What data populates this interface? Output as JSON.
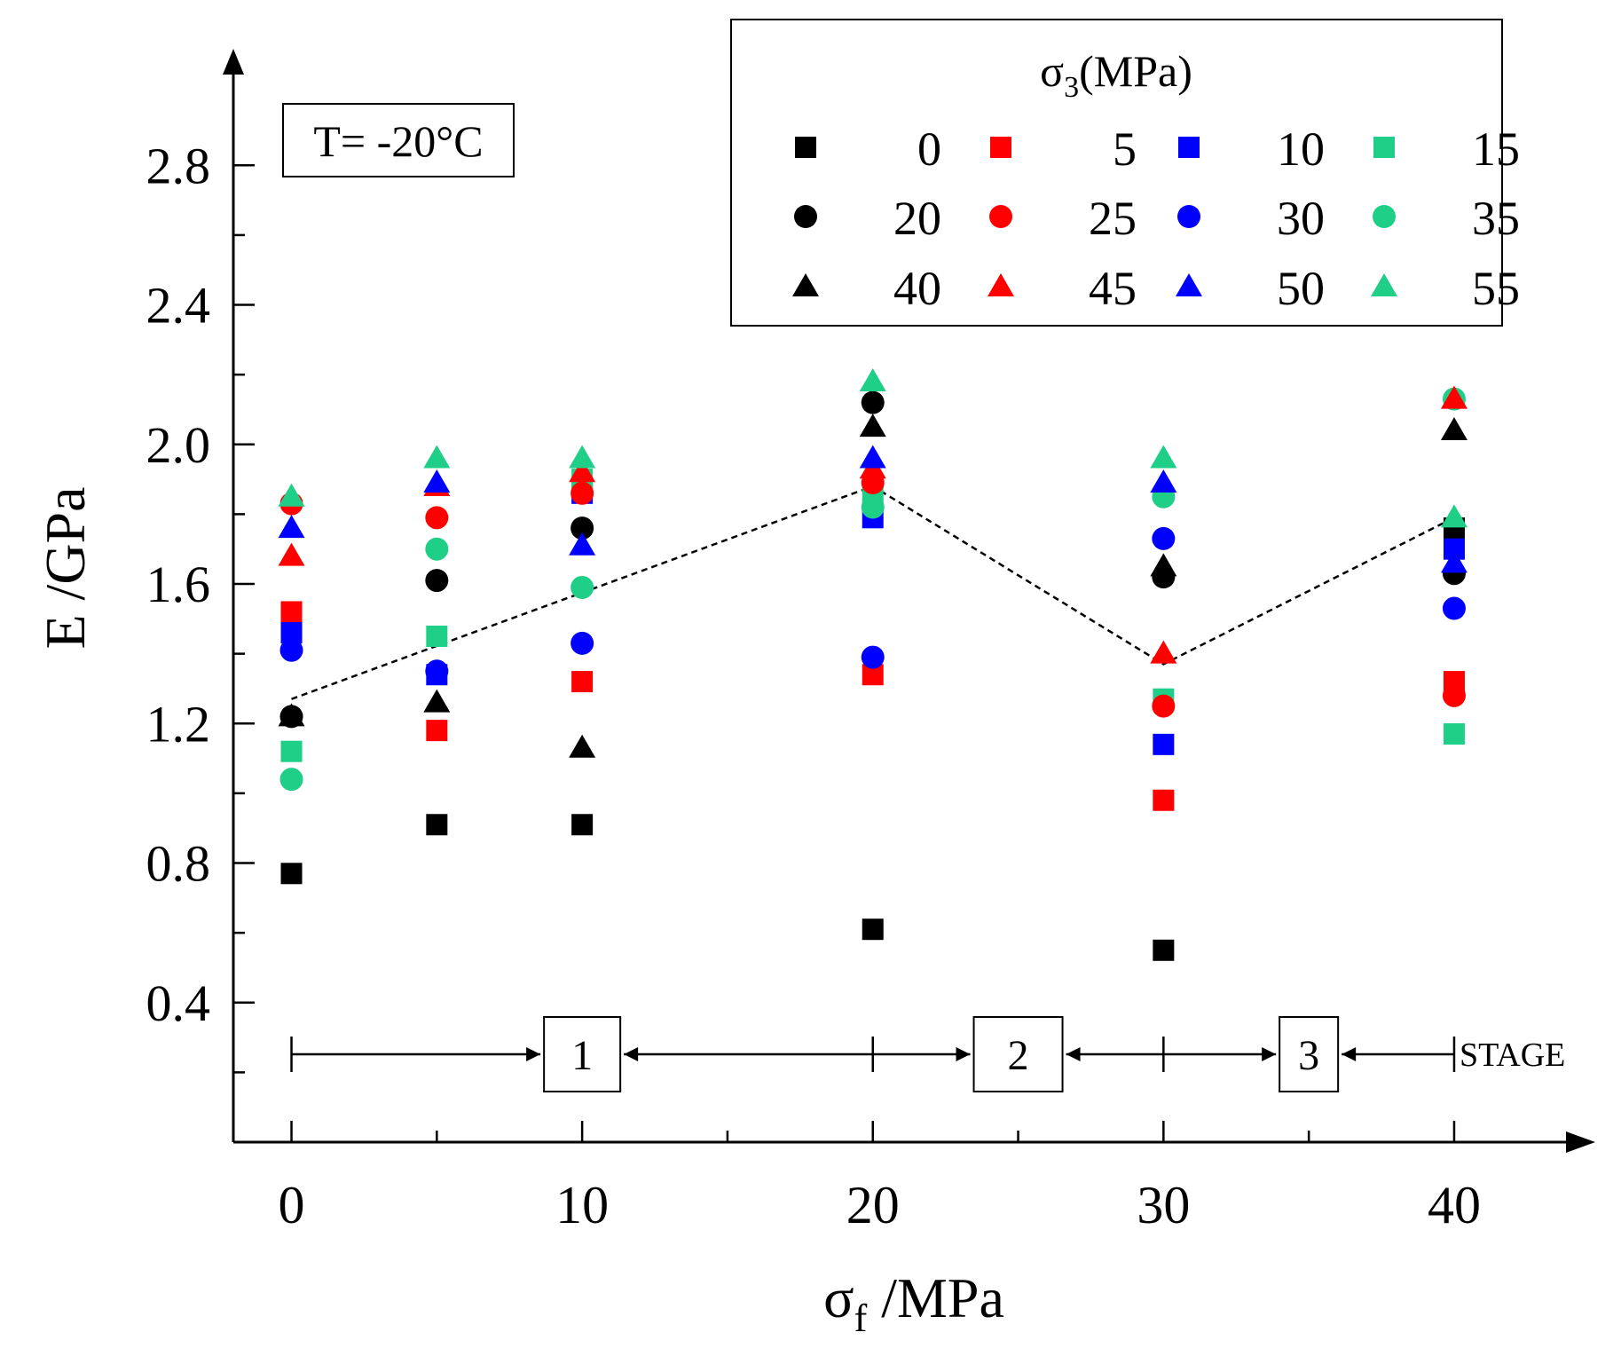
{
  "annotation": "T= -20°C",
  "legend": {
    "title_main": "σ",
    "title_sub": "3",
    "title_unit": "(MPa)"
  },
  "stage_labels": [
    "1",
    "2",
    "3"
  ],
  "stage_word": "STAGE",
  "colors": {
    "black": "#000000",
    "red": "#ff0000",
    "blue": "#0000ff",
    "green": "#1fcf87"
  },
  "chart_data": {
    "type": "scatter",
    "xlabel_main": "σ",
    "xlabel_sub": "f",
    "xlabel_unit": " /MPa",
    "ylabel": "E /GPa",
    "xlim": [
      -2,
      44
    ],
    "ylim": [
      0,
      3.05
    ],
    "xticks": [
      0,
      10,
      20,
      30,
      40
    ],
    "xtick_labels": [
      "0",
      "10",
      "20",
      "30",
      "40"
    ],
    "yticks": [
      0.4,
      0.8,
      1.2,
      1.6,
      2.0,
      2.4,
      2.8
    ],
    "ytick_labels": [
      "0.4",
      "0.8",
      "1.2",
      "1.6",
      "2.0",
      "2.4",
      "2.8"
    ],
    "x": [
      0,
      5,
      10,
      20,
      30,
      40
    ],
    "series": [
      {
        "name": "0",
        "marker": "square",
        "color": "#000000",
        "values": [
          0.77,
          0.91,
          0.91,
          0.61,
          0.55,
          1.76
        ]
      },
      {
        "name": "5",
        "marker": "square",
        "color": "#ff0000",
        "values": [
          1.52,
          1.18,
          1.32,
          1.34,
          0.98,
          1.32
        ]
      },
      {
        "name": "10",
        "marker": "square",
        "color": "#0000ff",
        "values": [
          1.46,
          1.34,
          1.86,
          1.79,
          1.14,
          1.7
        ]
      },
      {
        "name": "15",
        "marker": "square",
        "color": "#1fcf87",
        "values": [
          1.12,
          1.45,
          1.9,
          1.86,
          1.27,
          1.17
        ]
      },
      {
        "name": "20",
        "marker": "circle",
        "color": "#000000",
        "values": [
          1.22,
          1.61,
          1.76,
          2.12,
          1.62,
          1.63
        ]
      },
      {
        "name": "25",
        "marker": "circle",
        "color": "#ff0000",
        "values": [
          1.83,
          1.79,
          1.86,
          1.89,
          1.25,
          1.28
        ]
      },
      {
        "name": "30",
        "marker": "circle",
        "color": "#0000ff",
        "values": [
          1.41,
          1.35,
          1.43,
          1.39,
          1.73,
          1.53
        ]
      },
      {
        "name": "35",
        "marker": "circle",
        "color": "#1fcf87",
        "values": [
          1.04,
          1.7,
          1.59,
          1.82,
          1.85,
          2.13
        ]
      },
      {
        "name": "40",
        "marker": "triangle",
        "color": "#000000",
        "values": [
          1.22,
          1.26,
          1.13,
          2.05,
          1.65,
          2.04
        ]
      },
      {
        "name": "45",
        "marker": "triangle",
        "color": "#ff0000",
        "values": [
          1.68,
          1.88,
          1.92,
          1.93,
          1.4,
          2.13
        ]
      },
      {
        "name": "50",
        "marker": "triangle",
        "color": "#0000ff",
        "values": [
          1.76,
          1.89,
          1.71,
          1.96,
          1.89,
          1.66
        ]
      },
      {
        "name": "55",
        "marker": "triangle",
        "color": "#1fcf87",
        "values": [
          1.85,
          1.96,
          1.96,
          2.18,
          1.96,
          1.79
        ]
      }
    ],
    "trend": {
      "x": [
        0,
        20,
        30,
        40
      ],
      "y": [
        1.27,
        1.88,
        1.37,
        1.79
      ],
      "style": "dashed"
    },
    "stage_boundaries": [
      0,
      20,
      30,
      40
    ]
  }
}
